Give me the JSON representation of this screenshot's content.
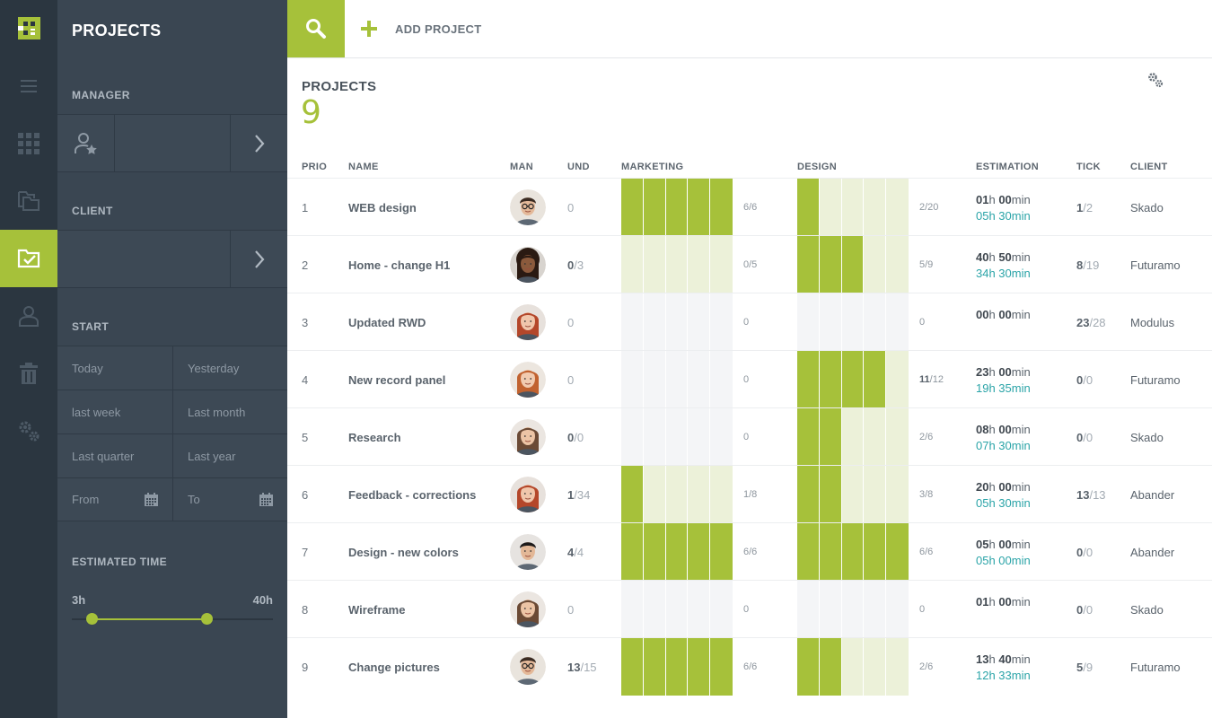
{
  "app": {
    "panel_title": "PROJECTS",
    "accent_color": "#a6c13a",
    "teal_color": "#2ba4a8"
  },
  "rail": {
    "items": [
      {
        "icon": "menu-icon"
      },
      {
        "icon": "grid-icon"
      },
      {
        "icon": "folders-icon"
      },
      {
        "icon": "folder-check-icon",
        "active": true
      },
      {
        "icon": "user-icon"
      },
      {
        "icon": "trash-icon"
      },
      {
        "icon": "gears-icon"
      }
    ]
  },
  "filters": {
    "manager_label": "MANAGER",
    "client_label": "CLIENT",
    "start_label": "START",
    "dates": {
      "today": "Today",
      "yesterday": "Yesterday",
      "last_week": "last week",
      "last_month": "Last month",
      "last_quarter": "Last quarter",
      "last_year": "Last year",
      "from_placeholder": "From",
      "to_placeholder": "To"
    },
    "estimated_label": "ESTIMATED TIME",
    "est_min": "3h",
    "est_max": "40h",
    "est_range_fraction": [
      0.1,
      0.67
    ]
  },
  "topbar": {
    "add_label": "ADD PROJECT"
  },
  "main": {
    "title": "PROJECTS",
    "count": "9"
  },
  "table": {
    "headers": {
      "prio": "PRIO",
      "name": "NAME",
      "man": "MAN",
      "und": "UND",
      "marketing": "MARKETING",
      "design": "DESIGN",
      "estimation": "ESTIMATION",
      "tick": "TICK",
      "client": "CLIENT"
    },
    "rows": [
      {
        "prio": "1",
        "name": "WEB design",
        "avatar": "man-glasses",
        "und_a": "",
        "und_b": "0",
        "mkt_on": 5,
        "mkt_state": "active",
        "mkt_frac_a": "",
        "mkt_frac_b": "6/6",
        "des_on": 1,
        "des_state": "active",
        "des_frac_a": "",
        "des_frac_b": "2/20",
        "est_h": "01",
        "est_m": "00",
        "est_time": "05h 30min",
        "tick_a": "1",
        "tick_b": "/2",
        "client": "Skado"
      },
      {
        "prio": "2",
        "name": "Home - change H1",
        "avatar": "curly-woman",
        "und_a": "0",
        "und_b": "/3",
        "mkt_on": 0,
        "mkt_state": "active",
        "mkt_frac_a": "",
        "mkt_frac_b": "0/5",
        "des_on": 3,
        "des_state": "active",
        "des_frac_a": "",
        "des_frac_b": "5/9",
        "est_h": "40",
        "est_m": "50",
        "est_time": "34h 30min",
        "tick_a": "8",
        "tick_b": "/19",
        "client": "Futuramo"
      },
      {
        "prio": "3",
        "name": "Updated RWD",
        "avatar": "redhead",
        "und_a": "",
        "und_b": "0",
        "mkt_on": 0,
        "mkt_state": "empty",
        "mkt_frac_a": "",
        "mkt_frac_b": "0",
        "des_on": 0,
        "des_state": "empty",
        "des_frac_a": "",
        "des_frac_b": "0",
        "est_h": "00",
        "est_m": "00",
        "est_time": "",
        "tick_a": "23",
        "tick_b": "/28",
        "client": "Modulus"
      },
      {
        "prio": "4",
        "name": "New record panel",
        "avatar": "woman-auburn",
        "und_a": "",
        "und_b": "0",
        "mkt_on": 0,
        "mkt_state": "empty",
        "mkt_frac_a": "",
        "mkt_frac_b": "0",
        "des_on": 4,
        "des_state": "active",
        "des_frac_a": "11",
        "des_frac_b": "/12",
        "est_h": "23",
        "est_m": "00",
        "est_time": "19h 35min",
        "tick_a": "0",
        "tick_b": "/0",
        "client": "Futuramo"
      },
      {
        "prio": "5",
        "name": "Research",
        "avatar": "woman-smile",
        "und_a": "0",
        "und_b": "/0",
        "mkt_on": 0,
        "mkt_state": "empty",
        "mkt_frac_a": "",
        "mkt_frac_b": "0",
        "des_on": 2,
        "des_state": "active",
        "des_frac_a": "",
        "des_frac_b": "2/6",
        "est_h": "08",
        "est_m": "00",
        "est_time": "07h 30min",
        "tick_a": "0",
        "tick_b": "/0",
        "client": "Skado"
      },
      {
        "prio": "6",
        "name": "Feedback - corrections",
        "avatar": "redhead",
        "und_a": "1",
        "und_b": "/34",
        "mkt_on": 1,
        "mkt_state": "active",
        "mkt_frac_a": "",
        "mkt_frac_b": "1/8",
        "des_on": 2,
        "des_state": "active",
        "des_frac_a": "",
        "des_frac_b": "3/8",
        "est_h": "20",
        "est_m": "00",
        "est_time": "05h 30min",
        "tick_a": "13",
        "tick_b": "/13",
        "client": "Abander"
      },
      {
        "prio": "7",
        "name": "Design - new colors",
        "avatar": "man-dark",
        "und_a": "4",
        "und_b": "/4",
        "mkt_on": 5,
        "mkt_state": "active",
        "mkt_frac_a": "",
        "mkt_frac_b": "6/6",
        "des_on": 5,
        "des_state": "active",
        "des_frac_a": "",
        "des_frac_b": "6/6",
        "est_h": "05",
        "est_m": "00",
        "est_time": "05h 00min",
        "tick_a": "0",
        "tick_b": "/0",
        "client": "Abander"
      },
      {
        "prio": "8",
        "name": "Wireframe",
        "avatar": "woman-smile",
        "und_a": "",
        "und_b": "0",
        "mkt_on": 0,
        "mkt_state": "empty",
        "mkt_frac_a": "",
        "mkt_frac_b": "0",
        "des_on": 0,
        "des_state": "empty",
        "des_frac_a": "",
        "des_frac_b": "0",
        "est_h": "01",
        "est_m": "00",
        "est_time": "",
        "tick_a": "0",
        "tick_b": "/0",
        "client": "Skado"
      },
      {
        "prio": "9",
        "name": "Change pictures",
        "avatar": "man-glasses",
        "und_a": "13",
        "und_b": "/15",
        "mkt_on": 5,
        "mkt_state": "active",
        "mkt_frac_a": "",
        "mkt_frac_b": "6/6",
        "des_on": 2,
        "des_state": "active",
        "des_frac_a": "",
        "des_frac_b": "2/6",
        "est_h": "13",
        "est_m": "40",
        "est_time": "12h 33min",
        "tick_a": "5",
        "tick_b": "/9",
        "client": "Futuramo"
      }
    ]
  }
}
